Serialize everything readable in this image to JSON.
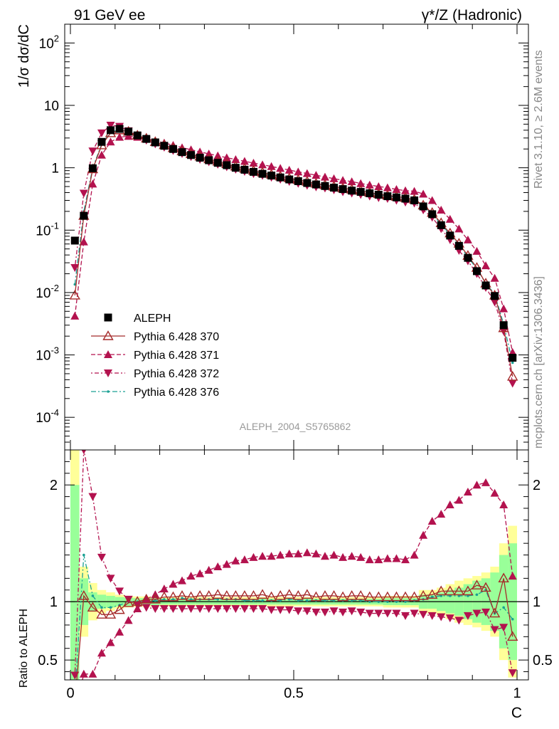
{
  "header": {
    "left": "91 GeV ee",
    "right": "γ*/Z (Hadronic)",
    "side_top": "Rivet 3.1.10, ≥ 2.6M events",
    "side_bottom": "mcplots.cern.ch [arXiv:1306.3436]",
    "watermark": "ALEPH_2004_S5765862"
  },
  "chart_data": [
    {
      "type": "line",
      "panel": "main",
      "ylabel": "1/σ  dσ/dC",
      "yscale": "log",
      "xlim": [
        0,
        1
      ],
      "ylim": [
        3e-05,
        200
      ],
      "ytick_labels": [
        "10^-4",
        "10^-3",
        "10^-2",
        "10^-1",
        "1",
        "10",
        "10^2"
      ],
      "legend_position": "lower-left",
      "x": [
        0.01,
        0.03,
        0.05,
        0.07,
        0.09,
        0.11,
        0.13,
        0.15,
        0.17,
        0.19,
        0.21,
        0.23,
        0.25,
        0.27,
        0.29,
        0.31,
        0.33,
        0.35,
        0.37,
        0.39,
        0.41,
        0.43,
        0.45,
        0.47,
        0.49,
        0.51,
        0.53,
        0.55,
        0.57,
        0.59,
        0.61,
        0.63,
        0.65,
        0.67,
        0.69,
        0.71,
        0.73,
        0.75,
        0.77,
        0.79,
        0.81,
        0.83,
        0.85,
        0.87,
        0.89,
        0.91,
        0.93,
        0.95,
        0.97,
        0.99
      ],
      "series": [
        {
          "name": "ALEPH",
          "color": "#000000",
          "marker": "square",
          "dash": "none",
          "values": [
            0.068,
            0.17,
            0.98,
            2.6,
            4.0,
            4.2,
            3.8,
            3.3,
            2.9,
            2.55,
            2.25,
            2.0,
            1.78,
            1.6,
            1.45,
            1.32,
            1.2,
            1.1,
            1.0,
            0.93,
            0.86,
            0.8,
            0.75,
            0.7,
            0.65,
            0.61,
            0.57,
            0.54,
            0.51,
            0.48,
            0.455,
            0.43,
            0.41,
            0.39,
            0.37,
            0.35,
            0.335,
            0.32,
            0.3,
            0.24,
            0.18,
            0.12,
            0.082,
            0.056,
            0.036,
            0.022,
            0.013,
            0.0088,
            0.003,
            0.0009
          ]
        },
        {
          "name": "Pythia 6.428 370",
          "color": "#a52a2a",
          "marker": "triangle-open",
          "dash": "none",
          "values": [
            0.009,
            0.17,
            0.95,
            2.3,
            3.6,
            4.0,
            3.8,
            3.3,
            2.95,
            2.6,
            2.32,
            2.07,
            1.85,
            1.66,
            1.52,
            1.38,
            1.26,
            1.15,
            1.05,
            0.97,
            0.9,
            0.84,
            0.78,
            0.73,
            0.68,
            0.64,
            0.6,
            0.56,
            0.53,
            0.5,
            0.47,
            0.45,
            0.43,
            0.4,
            0.38,
            0.36,
            0.345,
            0.33,
            0.31,
            0.25,
            0.19,
            0.13,
            0.089,
            0.061,
            0.039,
            0.025,
            0.014,
            0.009,
            0.0027,
            0.00045
          ]
        },
        {
          "name": "Pythia 6.428 371",
          "color": "#b3124e",
          "marker": "triangle-up",
          "dash": "6,3",
          "values": [
            0.0042,
            0.065,
            0.55,
            1.6,
            2.6,
            3.1,
            3.2,
            3.1,
            2.95,
            2.7,
            2.5,
            2.3,
            2.1,
            1.95,
            1.8,
            1.67,
            1.56,
            1.45,
            1.36,
            1.27,
            1.19,
            1.12,
            1.05,
            0.98,
            0.92,
            0.86,
            0.81,
            0.76,
            0.71,
            0.67,
            0.63,
            0.6,
            0.56,
            0.53,
            0.5,
            0.48,
            0.45,
            0.43,
            0.42,
            0.38,
            0.3,
            0.21,
            0.15,
            0.105,
            0.07,
            0.046,
            0.027,
            0.017,
            0.0055,
            0.0011
          ]
        },
        {
          "name": "Pythia 6.428 372",
          "color": "#b3124e",
          "marker": "triangle-down",
          "dash": "2,3,6,3",
          "values": [
            0.025,
            0.39,
            1.85,
            3.6,
            4.8,
            4.6,
            3.9,
            3.2,
            2.75,
            2.4,
            2.12,
            1.88,
            1.68,
            1.5,
            1.36,
            1.24,
            1.13,
            1.03,
            0.94,
            0.87,
            0.8,
            0.75,
            0.7,
            0.65,
            0.6,
            0.56,
            0.52,
            0.49,
            0.47,
            0.44,
            0.41,
            0.39,
            0.37,
            0.35,
            0.33,
            0.32,
            0.3,
            0.28,
            0.27,
            0.21,
            0.16,
            0.105,
            0.07,
            0.047,
            0.032,
            0.02,
            0.012,
            0.007,
            0.0024,
            0.00035
          ]
        },
        {
          "name": "Pythia 6.428 376",
          "color": "#1aa093",
          "marker": "dot",
          "dash": "7,3,2,3",
          "values": [
            0.0135,
            0.2,
            1.0,
            2.4,
            3.7,
            4.1,
            3.8,
            3.3,
            2.9,
            2.6,
            2.3,
            2.05,
            1.83,
            1.64,
            1.49,
            1.35,
            1.23,
            1.12,
            1.02,
            0.94,
            0.87,
            0.81,
            0.76,
            0.71,
            0.66,
            0.62,
            0.58,
            0.55,
            0.52,
            0.49,
            0.46,
            0.44,
            0.42,
            0.39,
            0.37,
            0.35,
            0.34,
            0.32,
            0.305,
            0.25,
            0.18,
            0.125,
            0.085,
            0.059,
            0.037,
            0.024,
            0.014,
            0.0095,
            0.0031,
            0.00075
          ]
        }
      ]
    },
    {
      "type": "line",
      "panel": "ratio",
      "ylabel": "Ratio to ALEPH",
      "xlabel": "C",
      "yscale": "linear",
      "xlim": [
        0,
        1
      ],
      "ylim": [
        0.33,
        2.3
      ],
      "xtick_labels": [
        "0",
        "0.5",
        "1"
      ],
      "ytick_labels": [
        "0.5",
        "1",
        "2"
      ],
      "x": [
        0.01,
        0.03,
        0.05,
        0.07,
        0.09,
        0.11,
        0.13,
        0.15,
        0.17,
        0.19,
        0.21,
        0.23,
        0.25,
        0.27,
        0.29,
        0.31,
        0.33,
        0.35,
        0.37,
        0.39,
        0.41,
        0.43,
        0.45,
        0.47,
        0.49,
        0.51,
        0.53,
        0.55,
        0.57,
        0.59,
        0.61,
        0.63,
        0.65,
        0.67,
        0.69,
        0.71,
        0.73,
        0.75,
        0.77,
        0.79,
        0.81,
        0.83,
        0.85,
        0.87,
        0.89,
        0.91,
        0.93,
        0.95,
        0.97,
        0.99
      ],
      "uncertainty_bands": {
        "yellow_half_width": [
          1.4,
          0.3,
          0.16,
          0.1,
          0.08,
          0.06,
          0.05,
          0.045,
          0.045,
          0.04,
          0.04,
          0.04,
          0.04,
          0.04,
          0.04,
          0.04,
          0.04,
          0.04,
          0.04,
          0.04,
          0.04,
          0.04,
          0.04,
          0.04,
          0.04,
          0.04,
          0.04,
          0.04,
          0.04,
          0.04,
          0.04,
          0.04,
          0.04,
          0.04,
          0.04,
          0.05,
          0.05,
          0.05,
          0.05,
          0.1,
          0.1,
          0.12,
          0.15,
          0.18,
          0.2,
          0.22,
          0.25,
          0.3,
          0.5,
          0.65
        ],
        "green_half_width": [
          1.0,
          0.2,
          0.08,
          0.06,
          0.05,
          0.04,
          0.035,
          0.03,
          0.03,
          0.03,
          0.025,
          0.025,
          0.025,
          0.025,
          0.025,
          0.025,
          0.025,
          0.025,
          0.025,
          0.025,
          0.025,
          0.025,
          0.025,
          0.025,
          0.025,
          0.025,
          0.025,
          0.025,
          0.025,
          0.025,
          0.025,
          0.025,
          0.025,
          0.025,
          0.025,
          0.03,
          0.03,
          0.03,
          0.03,
          0.06,
          0.06,
          0.08,
          0.1,
          0.12,
          0.15,
          0.18,
          0.2,
          0.25,
          0.4,
          0.5
        ]
      },
      "series": [
        {
          "name": "Pythia 6.428 370",
          "color": "#a52a2a",
          "marker": "triangle-open",
          "dash": "none",
          "values": [
            0.13,
            1.05,
            0.95,
            0.89,
            0.89,
            0.93,
            0.99,
            1.0,
            1.02,
            1.02,
            1.04,
            1.04,
            1.05,
            1.04,
            1.05,
            1.05,
            1.06,
            1.05,
            1.05,
            1.05,
            1.05,
            1.06,
            1.04,
            1.05,
            1.06,
            1.05,
            1.06,
            1.04,
            1.05,
            1.05,
            1.04,
            1.05,
            1.05,
            1.04,
            1.04,
            1.04,
            1.04,
            1.04,
            1.04,
            1.05,
            1.06,
            1.09,
            1.09,
            1.09,
            1.09,
            1.14,
            1.12,
            0.9,
            1.2,
            0.7
          ]
        },
        {
          "name": "Pythia 6.428 371",
          "color": "#b3124e",
          "marker": "triangle-up",
          "dash": "6,3",
          "values": [
            0.06,
            0.38,
            0.38,
            0.56,
            0.65,
            0.74,
            0.84,
            0.94,
            1.02,
            1.06,
            1.11,
            1.15,
            1.18,
            1.22,
            1.24,
            1.27,
            1.3,
            1.32,
            1.35,
            1.36,
            1.38,
            1.39,
            1.39,
            1.4,
            1.41,
            1.41,
            1.42,
            1.41,
            1.39,
            1.4,
            1.38,
            1.39,
            1.38,
            1.36,
            1.36,
            1.37,
            1.37,
            1.36,
            1.4,
            1.57,
            1.69,
            1.75,
            1.83,
            1.87,
            1.94,
            2.0,
            2.02,
            1.93,
            1.83,
            1.22
          ]
        },
        {
          "name": "Pythia 6.428 372",
          "color": "#b3124e",
          "marker": "triangle-down",
          "dash": "2,3,6,3",
          "values": [
            0.37,
            2.3,
            1.9,
            1.38,
            1.2,
            1.09,
            1.02,
            0.97,
            0.95,
            0.94,
            0.94,
            0.94,
            0.94,
            0.94,
            0.94,
            0.94,
            0.94,
            0.94,
            0.94,
            0.94,
            0.94,
            0.94,
            0.93,
            0.93,
            0.93,
            0.92,
            0.92,
            0.91,
            0.91,
            0.92,
            0.91,
            0.92,
            0.91,
            0.9,
            0.9,
            0.9,
            0.9,
            0.88,
            0.9,
            0.89,
            0.88,
            0.87,
            0.86,
            0.84,
            0.88,
            0.9,
            0.91,
            0.76,
            0.78,
            0.39
          ]
        },
        {
          "name": "Pythia 6.428 376",
          "color": "#1aa093",
          "marker": "dot",
          "dash": "7,3,2,3",
          "values": [
            0.2,
            1.4,
            1.05,
            0.95,
            0.95,
            0.97,
            1.0,
            1.0,
            1.0,
            1.01,
            1.02,
            1.02,
            1.03,
            1.02,
            1.02,
            1.02,
            1.02,
            1.02,
            1.02,
            1.01,
            1.01,
            1.01,
            1.01,
            1.01,
            1.02,
            1.01,
            1.01,
            1.01,
            1.01,
            1.01,
            1.01,
            1.01,
            1.01,
            1.0,
            1.0,
            1.0,
            1.0,
            1.0,
            1.01,
            1.02,
            1.04,
            1.05,
            1.05,
            1.05,
            1.05,
            1.06,
            1.1,
            0.9,
            0.95,
            0.85
          ]
        }
      ]
    }
  ]
}
